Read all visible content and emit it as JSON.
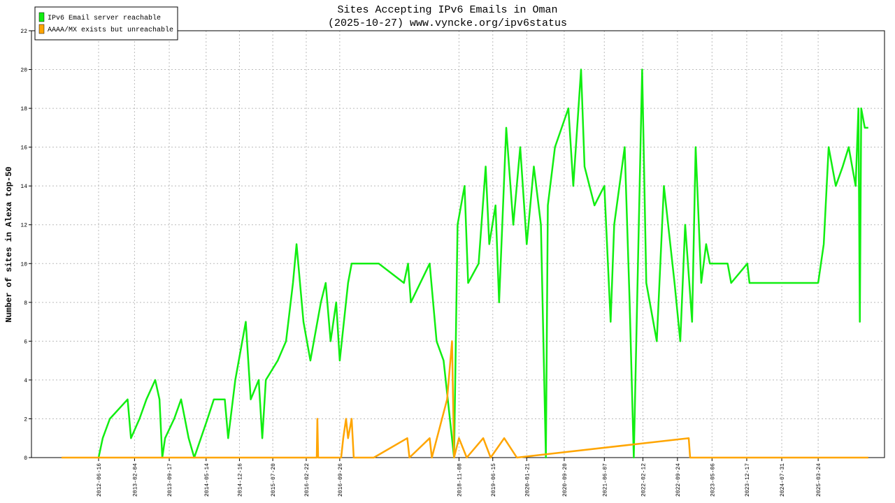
{
  "chart_data": {
    "type": "line",
    "title": "Sites Accepting IPv6 Emails in Oman",
    "subtitle": "(2025-10-27) www.vyncke.org/ipv6status",
    "y_label": "Number of sites in Alexa top-50",
    "xlim": [
      "2011-04-08",
      "2026-05-28"
    ],
    "ylim": [
      0,
      22
    ],
    "yticks": [
      0,
      2,
      4,
      6,
      8,
      10,
      12,
      14,
      16,
      18,
      20,
      22
    ],
    "xticks": [
      "2012-06-16",
      "2013-02-04",
      "2013-09-17",
      "2014-05-14",
      "2014-12-16",
      "2015-07-20",
      "2016-02-22",
      "2016-09-26",
      "2018-11-08",
      "2019-06-15",
      "2020-01-21",
      "2020-09-20",
      "2021-06-07",
      "2022-02-12",
      "2022-09-24",
      "2023-05-06",
      "2023-12-17",
      "2024-07-31",
      "2025-03-24"
    ],
    "grid": true,
    "legend": "top-left",
    "series": [
      {
        "name": "IPv6 Email server reachable",
        "color": "#11ee11",
        "x": [
          "2012-06-16",
          "2012-07-13",
          "2012-08-28",
          "2012-12-21",
          "2013-01-12",
          "2013-03-08",
          "2013-04-22",
          "2013-06-18",
          "2013-07-16",
          "2013-08-03",
          "2013-08-21",
          "2013-10-19",
          "2013-12-03",
          "2014-01-21",
          "2014-02-26",
          "2014-05-23",
          "2014-07-03",
          "2014-09-12",
          "2014-10-04",
          "2014-11-19",
          "2015-01-26",
          "2015-02-27",
          "2015-04-20",
          "2015-05-13",
          "2015-06-05",
          "2015-08-21",
          "2015-10-14",
          "2015-11-28",
          "2015-12-21",
          "2016-02-04",
          "2016-03-20",
          "2016-05-27",
          "2016-06-27",
          "2016-07-29",
          "2016-09-03",
          "2016-09-26",
          "2016-11-19",
          "2016-12-12",
          "2017-06-06",
          "2017-11-16",
          "2017-12-13",
          "2017-12-31",
          "2018-05-02",
          "2018-06-16",
          "2018-07-31",
          "2018-10-07",
          "2018-10-30",
          "2018-12-14",
          "2019-01-06",
          "2019-03-15",
          "2019-04-30",
          "2019-05-23",
          "2019-07-03",
          "2019-07-26",
          "2019-09-10",
          "2019-10-26",
          "2019-12-10",
          "2020-01-21",
          "2020-03-07",
          "2020-04-22",
          "2020-05-24",
          "2020-06-06",
          "2020-07-22",
          "2020-10-17",
          "2020-11-18",
          "2021-01-07",
          "2021-01-30",
          "2021-04-04",
          "2021-06-07",
          "2021-07-18",
          "2021-08-10",
          "2021-10-17",
          "2021-11-18",
          "2021-12-15",
          "2022-02-07",
          "2022-03-06",
          "2022-05-13",
          "2022-06-28",
          "2022-09-05",
          "2022-10-12",
          "2022-11-13",
          "2022-12-28",
          "2023-01-20",
          "2023-02-25",
          "2023-03-29",
          "2023-04-22",
          "2023-08-15",
          "2023-09-07",
          "2023-12-21",
          "2024-01-04",
          "2025-03-24",
          "2025-04-29",
          "2025-05-31",
          "2025-07-16",
          "2025-08-30",
          "2025-10-08",
          "2025-11-22",
          "2025-12-10",
          "2025-12-19",
          "2025-12-28",
          "2026-01-20",
          "2026-02-12"
        ],
        "values": [
          0,
          1,
          2,
          3,
          1,
          2,
          3,
          4,
          3,
          0,
          1,
          2,
          3,
          1,
          0,
          2,
          3,
          3,
          1,
          4,
          7,
          3,
          4,
          1,
          4,
          5,
          6,
          9,
          11,
          7,
          5,
          8,
          9,
          6,
          8,
          5,
          9,
          10,
          10,
          9,
          10,
          8,
          10,
          6,
          5,
          0,
          12,
          14,
          9,
          10,
          15,
          11,
          13,
          8,
          17,
          12,
          16,
          11,
          15,
          12,
          0,
          13,
          16,
          18,
          14,
          20,
          15,
          13,
          14,
          7,
          12,
          16,
          8,
          0,
          20,
          9,
          6,
          14,
          9,
          6,
          12,
          7,
          16,
          9,
          11,
          10,
          10,
          9,
          10,
          9,
          9,
          11,
          16,
          14,
          15,
          16,
          14,
          18,
          7,
          18,
          17,
          17
        ]
      },
      {
        "name": "AAAA/MX exists but unreachable",
        "color": "#ffa500",
        "x": [
          "2011-10-20",
          "2016-04-30",
          "2016-05-04",
          "2016-05-09",
          "2016-10-05",
          "2016-10-19",
          "2016-11-06",
          "2016-11-19",
          "2016-12-12",
          "2016-12-26",
          "2017-05-05",
          "2017-12-08",
          "2017-12-22",
          "2018-05-02",
          "2018-05-16",
          "2018-08-23",
          "2018-09-24",
          "2018-10-07",
          "2018-11-08",
          "2018-12-28",
          "2019-04-14",
          "2019-06-01",
          "2019-08-28",
          "2019-11-18",
          "2022-12-06",
          "2022-12-15",
          "2026-02-12"
        ],
        "values": [
          0,
          0,
          2,
          0,
          0,
          1,
          2,
          1,
          2,
          0,
          0,
          1,
          0,
          1,
          0,
          3,
          6,
          0,
          1,
          0,
          1,
          0,
          1,
          0,
          1,
          0,
          0
        ]
      }
    ]
  }
}
